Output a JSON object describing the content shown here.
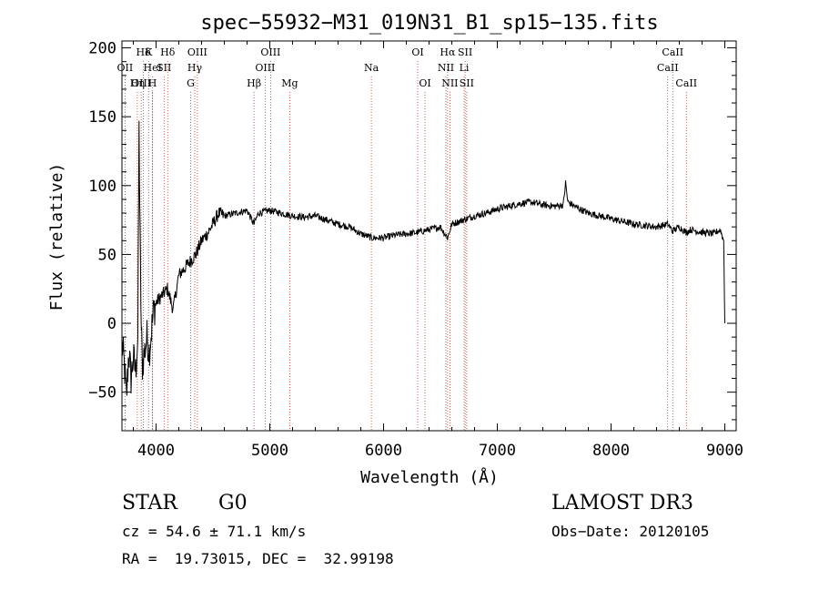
{
  "chart_data": {
    "type": "line",
    "title": "spec−55932−M31_019N31_B1_sp15−135.fits",
    "xlabel": "Wavelength (Å)",
    "ylabel": "Flux (relative)",
    "xlim": [
      3700,
      9100
    ],
    "ylim": [
      -78,
      205
    ],
    "x_ticks": [
      4000,
      5000,
      6000,
      7000,
      8000,
      9000
    ],
    "x_tick_labels": [
      "4000",
      "5000",
      "6000",
      "7000",
      "8000",
      "9000"
    ],
    "y_ticks": [
      -50,
      0,
      50,
      100,
      150,
      200
    ],
    "y_tick_labels": [
      "−50",
      "0",
      "50",
      "100",
      "150",
      "200"
    ],
    "series": [
      {
        "name": "spectrum",
        "color": "#000000",
        "points": [
          [
            3700,
            -15
          ],
          [
            3720,
            -30
          ],
          [
            3740,
            -55
          ],
          [
            3760,
            -20
          ],
          [
            3780,
            -40
          ],
          [
            3800,
            -25
          ],
          [
            3820,
            -35
          ],
          [
            3840,
            -10
          ],
          [
            3850,
            140
          ],
          [
            3860,
            60
          ],
          [
            3870,
            -5
          ],
          [
            3880,
            -30
          ],
          [
            3900,
            -20
          ],
          [
            3920,
            -10
          ],
          [
            3940,
            -20
          ],
          [
            3960,
            -5
          ],
          [
            3980,
            10
          ],
          [
            4000,
            15
          ],
          [
            4050,
            20
          ],
          [
            4100,
            25
          ],
          [
            4150,
            10
          ],
          [
            4200,
            35
          ],
          [
            4250,
            40
          ],
          [
            4300,
            45
          ],
          [
            4350,
            50
          ],
          [
            4400,
            60
          ],
          [
            4450,
            65
          ],
          [
            4500,
            72
          ],
          [
            4550,
            80
          ],
          [
            4600,
            78
          ],
          [
            4700,
            80
          ],
          [
            4800,
            82
          ],
          [
            4860,
            72
          ],
          [
            4900,
            80
          ],
          [
            5000,
            82
          ],
          [
            5100,
            80
          ],
          [
            5200,
            78
          ],
          [
            5300,
            77
          ],
          [
            5400,
            78
          ],
          [
            5500,
            75
          ],
          [
            5600,
            72
          ],
          [
            5700,
            70
          ],
          [
            5800,
            65
          ],
          [
            5900,
            62
          ],
          [
            6000,
            62
          ],
          [
            6100,
            64
          ],
          [
            6200,
            65
          ],
          [
            6300,
            66
          ],
          [
            6400,
            68
          ],
          [
            6500,
            70
          ],
          [
            6563,
            62
          ],
          [
            6600,
            72
          ],
          [
            6700,
            75
          ],
          [
            6800,
            78
          ],
          [
            6900,
            80
          ],
          [
            7000,
            83
          ],
          [
            7100,
            85
          ],
          [
            7200,
            87
          ],
          [
            7300,
            88
          ],
          [
            7400,
            86
          ],
          [
            7500,
            85
          ],
          [
            7580,
            86
          ],
          [
            7600,
            102
          ],
          [
            7620,
            88
          ],
          [
            7700,
            84
          ],
          [
            7800,
            80
          ],
          [
            7900,
            78
          ],
          [
            8000,
            76
          ],
          [
            8100,
            74
          ],
          [
            8200,
            72
          ],
          [
            8300,
            71
          ],
          [
            8400,
            70
          ],
          [
            8500,
            72
          ],
          [
            8540,
            67
          ],
          [
            8600,
            70
          ],
          [
            8660,
            66
          ],
          [
            8700,
            68
          ],
          [
            8800,
            66
          ],
          [
            8900,
            65
          ],
          [
            8960,
            68
          ],
          [
            8990,
            60
          ],
          [
            9000,
            0
          ]
        ]
      }
    ],
    "lines": [
      {
        "label": "Hδ",
        "wave": 3889,
        "label_row": 1
      },
      {
        "label": "OII",
        "wave": 3727,
        "label_row": 2
      },
      {
        "label": "OIII",
        "wave": 3869,
        "label_row": 3
      },
      {
        "label": "K",
        "wave": 3934,
        "label_row": 1
      },
      {
        "label": "HeI",
        "wave": 3970,
        "label_row": 2
      },
      {
        "label": "Hη",
        "wave": 3835,
        "label_row": 3
      },
      {
        "label": "H",
        "wave": 3968,
        "label_row": 3
      },
      {
        "label": "Hδ",
        "wave": 4102,
        "label_row": 1
      },
      {
        "label": "SII",
        "wave": 4070,
        "label_row": 2
      },
      {
        "label": "OIII",
        "wave": 4363,
        "label_row": 1
      },
      {
        "label": "Hγ",
        "wave": 4340,
        "label_row": 2
      },
      {
        "label": "G",
        "wave": 4304,
        "label_row": 3
      },
      {
        "label": "Hβ",
        "wave": 4861,
        "label_row": 3
      },
      {
        "label": "OIII",
        "wave": 5007,
        "label_row": 1
      },
      {
        "label": "OIII",
        "wave": 4959,
        "label_row": 2
      },
      {
        "label": "Mg",
        "wave": 5175,
        "label_row": 3
      },
      {
        "label": "Na",
        "wave": 5893,
        "label_row": 2
      },
      {
        "label": "OI",
        "wave": 6300,
        "label_row": 1
      },
      {
        "label": "OI",
        "wave": 6364,
        "label_row": 3
      },
      {
        "label": "Hα",
        "wave": 6563,
        "label_row": 1
      },
      {
        "label": "SII",
        "wave": 6717,
        "label_row": 1
      },
      {
        "label": "NII",
        "wave": 6548,
        "label_row": 2
      },
      {
        "label": "Li",
        "wave": 6708,
        "label_row": 2
      },
      {
        "label": "NII",
        "wave": 6583,
        "label_row": 3
      },
      {
        "label": "SII",
        "wave": 6731,
        "label_row": 3
      },
      {
        "label": "CaII",
        "wave": 8542,
        "label_row": 1
      },
      {
        "label": "CaII",
        "wave": 8498,
        "label_row": 2
      },
      {
        "label": "CaII",
        "wave": 8662,
        "label_row": 3
      }
    ]
  },
  "info": {
    "class": "STAR",
    "subclass": "G0",
    "survey": "LAMOST DR3",
    "cz": "cz = 54.6 ± 71.1 km/s",
    "obs_date": "Obs−Date: 20120105",
    "coords": "RA =  19.73015, DEC =  32.99198"
  },
  "colors": {
    "line_marker": "#c0392b",
    "spectrum": "#000000",
    "axes": "#000000"
  }
}
